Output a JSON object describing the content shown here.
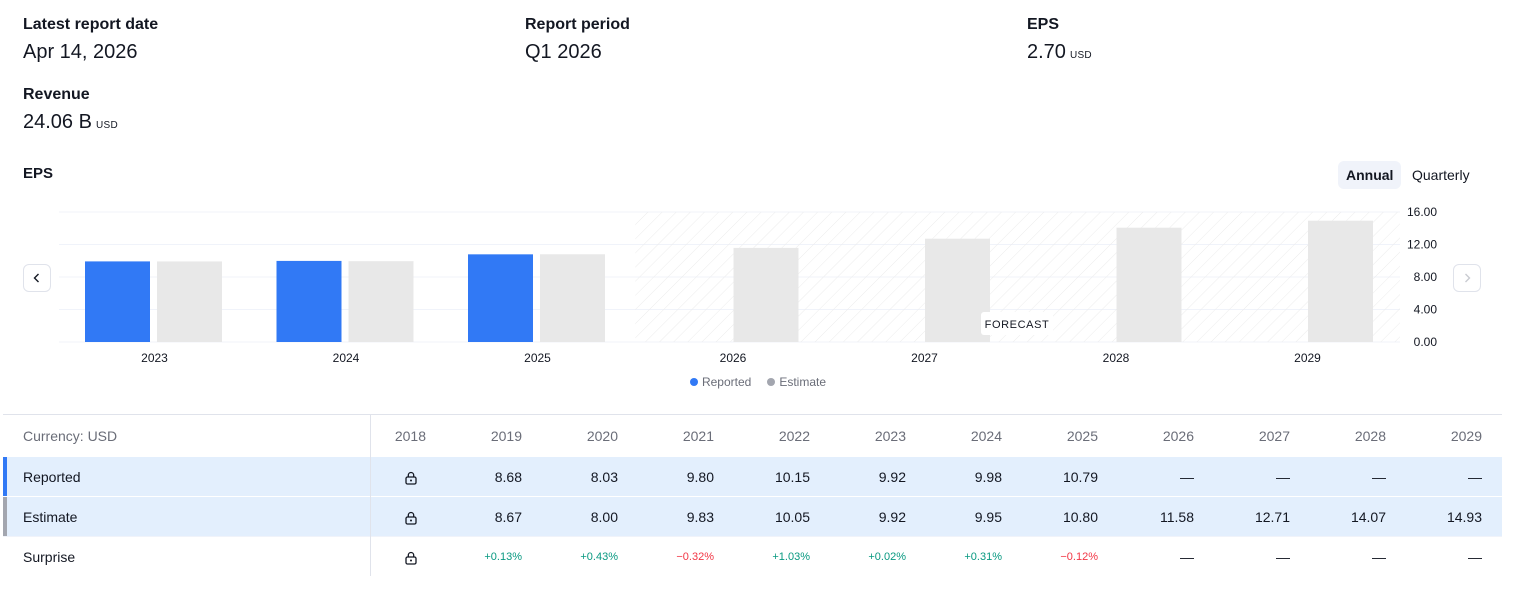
{
  "summary": {
    "latest_report_date": {
      "label": "Latest report date",
      "value": "Apr 14, 2026"
    },
    "report_period": {
      "label": "Report period",
      "value": "Q1 2026"
    },
    "eps": {
      "label": "EPS",
      "value": "2.70",
      "unit": "USD"
    },
    "revenue": {
      "label": "Revenue",
      "value": "24.06 B",
      "unit": "USD"
    }
  },
  "chart_header": {
    "title": "EPS",
    "toggle_annual": "Annual",
    "toggle_quarterly": "Quarterly",
    "forecast_label": "FORECAST"
  },
  "colors": {
    "reported": "#3179f5",
    "estimate": "#e8e8e8",
    "legend_estimate": "#a3a6af",
    "positive": "#089981",
    "negative": "#f23645"
  },
  "chart_data": {
    "type": "bar",
    "title": "EPS",
    "categories": [
      "2023",
      "2024",
      "2025",
      "2026",
      "2027",
      "2028",
      "2029"
    ],
    "series": [
      {
        "name": "Reported",
        "values": [
          9.92,
          9.98,
          10.79,
          null,
          null,
          null,
          null
        ]
      },
      {
        "name": "Estimate",
        "values": [
          9.92,
          9.95,
          10.8,
          11.58,
          12.71,
          14.07,
          14.93
        ]
      }
    ],
    "forecast_start": "2026",
    "ylim": [
      0,
      16
    ],
    "yticks": [
      "0.00",
      "4.00",
      "8.00",
      "12.00",
      "16.00"
    ],
    "y_axis_position": "right",
    "grid": true,
    "legend": "bottom-center"
  },
  "legend": {
    "reported": "Reported",
    "estimate": "Estimate"
  },
  "table": {
    "currency_label": "Currency: USD",
    "years": [
      "2018",
      "2019",
      "2020",
      "2021",
      "2022",
      "2023",
      "2024",
      "2025",
      "2026",
      "2027",
      "2028",
      "2029"
    ],
    "rows": [
      {
        "label": "Reported",
        "values": [
          "lock",
          "8.68",
          "8.03",
          "9.80",
          "10.15",
          "9.92",
          "9.98",
          "10.79",
          "—",
          "—",
          "—",
          "—"
        ]
      },
      {
        "label": "Estimate",
        "values": [
          "lock",
          "8.67",
          "8.00",
          "9.83",
          "10.05",
          "9.92",
          "9.95",
          "10.80",
          "11.58",
          "12.71",
          "14.07",
          "14.93"
        ]
      },
      {
        "label": "Surprise",
        "values": [
          "lock",
          "+0.13%",
          "+0.43%",
          "−0.32%",
          "+1.03%",
          "+0.02%",
          "+0.31%",
          "−0.12%",
          "—",
          "—",
          "—",
          "—"
        ]
      }
    ]
  }
}
